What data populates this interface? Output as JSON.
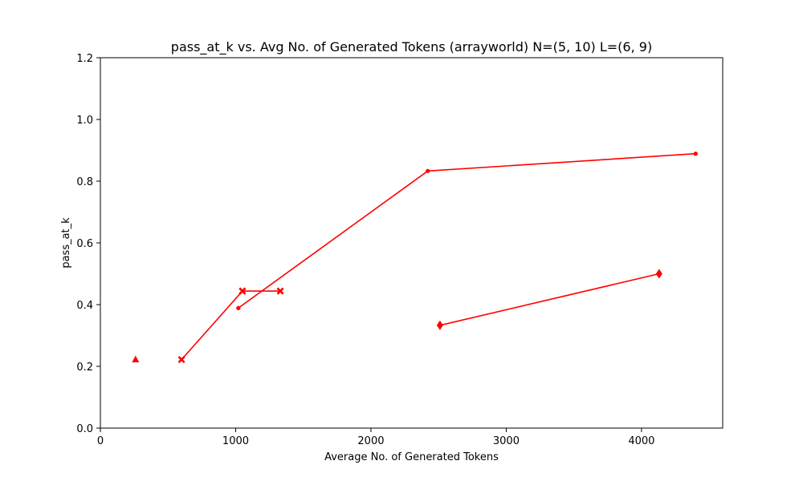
{
  "chart_data": {
    "type": "line",
    "title": "pass_at_k vs. Avg No. of Generated Tokens (arrayworld) N=(5, 10) L=(6, 9)",
    "xlabel": "Average No. of Generated Tokens",
    "ylabel": "pass_at_k",
    "xlim": [
      0,
      4600
    ],
    "ylim": [
      0,
      1.2
    ],
    "xticks": [
      0,
      1000,
      2000,
      3000,
      4000
    ],
    "yticks": [
      0.0,
      0.2,
      0.4,
      0.6,
      0.8,
      1.0,
      1.2
    ],
    "xtick_labels": [
      "0",
      "1000",
      "2000",
      "3000",
      "4000"
    ],
    "ytick_labels": [
      "0.0",
      "0.2",
      "0.4",
      "0.6",
      "0.8",
      "1.0",
      "1.2"
    ],
    "grid": false,
    "color": "#ff0000",
    "series": [
      {
        "marker": "dot",
        "x": [
          1020,
          2420,
          4400
        ],
        "y": [
          0.389,
          0.833,
          0.889
        ]
      },
      {
        "marker": "x",
        "x": [
          600,
          1050
        ],
        "y": [
          0.222,
          0.444
        ]
      },
      {
        "marker": "x",
        "x": [
          1050,
          1330
        ],
        "y": [
          0.444,
          0.444
        ]
      },
      {
        "marker": "diamond",
        "x": [
          2510,
          4130
        ],
        "y": [
          0.333,
          0.5
        ]
      },
      {
        "marker": "triangle",
        "x": [
          260
        ],
        "y": [
          0.222
        ]
      }
    ]
  }
}
